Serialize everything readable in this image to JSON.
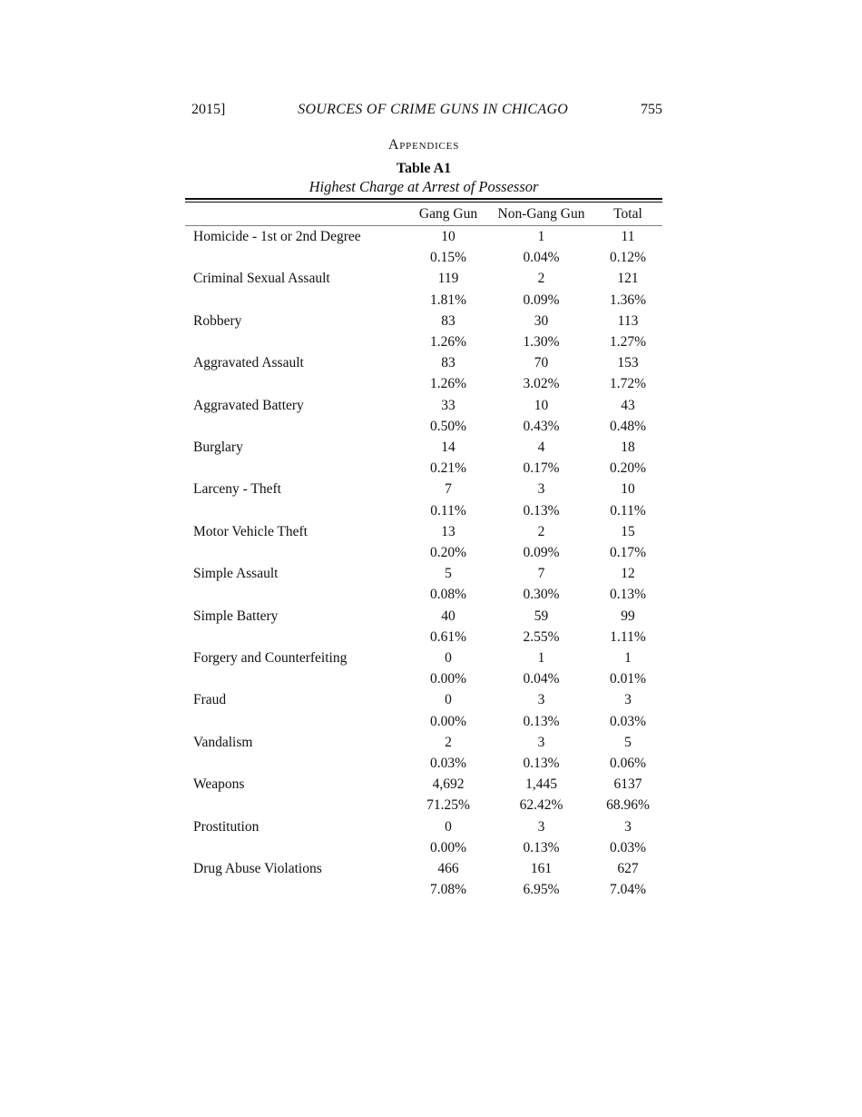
{
  "header": {
    "year": "2015]",
    "running_title": "SOURCES OF CRIME GUNS IN CHICAGO",
    "page_number": "755"
  },
  "section_heading": "Appendices",
  "table": {
    "title": "Table A1",
    "subtitle": "Highest Charge at Arrest of Possessor",
    "columns": [
      "Gang Gun",
      "Non-Gang Gun",
      "Total"
    ],
    "rows": [
      {
        "label": "Homicide - 1st or 2nd Degree",
        "counts": [
          "10",
          "1",
          "11"
        ],
        "percents": [
          "0.15%",
          "0.04%",
          "0.12%"
        ]
      },
      {
        "label": "Criminal Sexual Assault",
        "counts": [
          "119",
          "2",
          "121"
        ],
        "percents": [
          "1.81%",
          "0.09%",
          "1.36%"
        ]
      },
      {
        "label": "Robbery",
        "counts": [
          "83",
          "30",
          "113"
        ],
        "percents": [
          "1.26%",
          "1.30%",
          "1.27%"
        ]
      },
      {
        "label": "Aggravated Assault",
        "counts": [
          "83",
          "70",
          "153"
        ],
        "percents": [
          "1.26%",
          "3.02%",
          "1.72%"
        ]
      },
      {
        "label": "Aggravated Battery",
        "counts": [
          "33",
          "10",
          "43"
        ],
        "percents": [
          "0.50%",
          "0.43%",
          "0.48%"
        ]
      },
      {
        "label": "Burglary",
        "counts": [
          "14",
          "4",
          "18"
        ],
        "percents": [
          "0.21%",
          "0.17%",
          "0.20%"
        ]
      },
      {
        "label": "Larceny - Theft",
        "counts": [
          "7",
          "3",
          "10"
        ],
        "percents": [
          "0.11%",
          "0.13%",
          "0.11%"
        ]
      },
      {
        "label": "Motor Vehicle Theft",
        "counts": [
          "13",
          "2",
          "15"
        ],
        "percents": [
          "0.20%",
          "0.09%",
          "0.17%"
        ]
      },
      {
        "label": "Simple Assault",
        "counts": [
          "5",
          "7",
          "12"
        ],
        "percents": [
          "0.08%",
          "0.30%",
          "0.13%"
        ]
      },
      {
        "label": "Simple Battery",
        "counts": [
          "40",
          "59",
          "99"
        ],
        "percents": [
          "0.61%",
          "2.55%",
          "1.11%"
        ]
      },
      {
        "label": "Forgery and Counterfeiting",
        "counts": [
          "0",
          "1",
          "1"
        ],
        "percents": [
          "0.00%",
          "0.04%",
          "0.01%"
        ]
      },
      {
        "label": "Fraud",
        "counts": [
          "0",
          "3",
          "3"
        ],
        "percents": [
          "0.00%",
          "0.13%",
          "0.03%"
        ]
      },
      {
        "label": "Vandalism",
        "counts": [
          "2",
          "3",
          "5"
        ],
        "percents": [
          "0.03%",
          "0.13%",
          "0.06%"
        ]
      },
      {
        "label": "Weapons",
        "counts": [
          "4,692",
          "1,445",
          "6137"
        ],
        "percents": [
          "71.25%",
          "62.42%",
          "68.96%"
        ]
      },
      {
        "label": "Prostitution",
        "counts": [
          "0",
          "3",
          "3"
        ],
        "percents": [
          "0.00%",
          "0.13%",
          "0.03%"
        ]
      },
      {
        "label": "Drug Abuse Violations",
        "counts": [
          "466",
          "161",
          "627"
        ],
        "percents": [
          "7.08%",
          "6.95%",
          "7.04%"
        ]
      }
    ]
  }
}
